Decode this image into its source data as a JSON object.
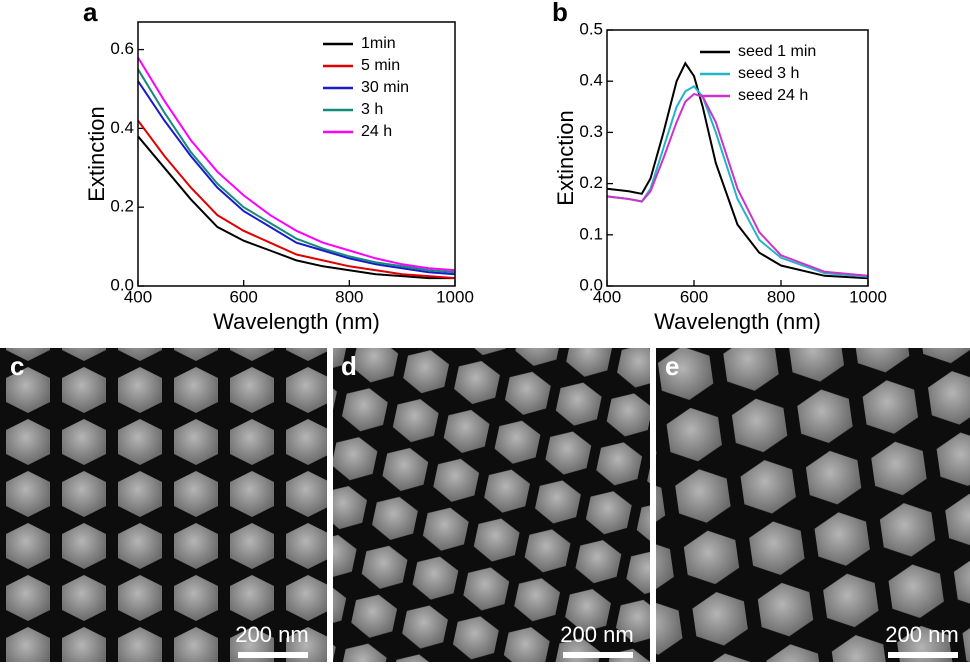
{
  "chart_data": [
    {
      "type": "line",
      "label": "a",
      "xlabel": "Wavelength (nm)",
      "ylabel": "Extinction",
      "x": [
        400,
        450,
        500,
        550,
        600,
        650,
        700,
        750,
        800,
        850,
        900,
        950,
        1000
      ],
      "series": [
        {
          "name": "1min",
          "color": "#000000",
          "values": [
            0.38,
            0.3,
            0.22,
            0.15,
            0.115,
            0.09,
            0.065,
            0.05,
            0.04,
            0.03,
            0.025,
            0.02,
            0.02
          ]
        },
        {
          "name": "5 min",
          "color": "#e00000",
          "values": [
            0.42,
            0.33,
            0.25,
            0.18,
            0.14,
            0.11,
            0.08,
            0.065,
            0.05,
            0.04,
            0.03,
            0.025,
            0.02
          ]
        },
        {
          "name": "30 min",
          "color": "#1a1acc",
          "values": [
            0.52,
            0.42,
            0.33,
            0.25,
            0.19,
            0.15,
            0.11,
            0.09,
            0.07,
            0.055,
            0.045,
            0.035,
            0.03
          ]
        },
        {
          "name": "3 h",
          "color": "#148a7a",
          "values": [
            0.55,
            0.44,
            0.34,
            0.26,
            0.2,
            0.16,
            0.12,
            0.095,
            0.075,
            0.06,
            0.05,
            0.04,
            0.035
          ]
        },
        {
          "name": "24 h",
          "color": "#ff00ff",
          "values": [
            0.58,
            0.47,
            0.37,
            0.29,
            0.23,
            0.18,
            0.14,
            0.11,
            0.09,
            0.07,
            0.055,
            0.045,
            0.04
          ]
        }
      ],
      "xlim": [
        400,
        1000
      ],
      "xticks": [
        400,
        600,
        800,
        1000
      ],
      "ylim": [
        0,
        0.67
      ],
      "yticks": [
        {
          "value": 0,
          "label": "0.0"
        },
        0.2,
        0.4,
        0.6
      ],
      "legend": "upper right"
    },
    {
      "type": "line",
      "label": "b",
      "xlabel": "Wavelength (nm)",
      "ylabel": "Extinction",
      "x": [
        400,
        450,
        480,
        500,
        530,
        560,
        580,
        600,
        620,
        650,
        700,
        750,
        800,
        900,
        1000
      ],
      "series": [
        {
          "name": "seed 1 min",
          "color": "#000000",
          "values": [
            0.19,
            0.185,
            0.18,
            0.21,
            0.3,
            0.4,
            0.435,
            0.41,
            0.35,
            0.24,
            0.12,
            0.065,
            0.04,
            0.02,
            0.015
          ]
        },
        {
          "name": "seed 3 h",
          "color": "#22b5c8",
          "values": [
            0.175,
            0.17,
            0.165,
            0.19,
            0.27,
            0.35,
            0.38,
            0.39,
            0.37,
            0.3,
            0.17,
            0.09,
            0.055,
            0.025,
            0.018
          ]
        },
        {
          "name": "seed 24 h",
          "color": "#cc33cc",
          "values": [
            0.175,
            0.17,
            0.165,
            0.185,
            0.25,
            0.32,
            0.36,
            0.375,
            0.37,
            0.32,
            0.19,
            0.105,
            0.06,
            0.028,
            0.02
          ]
        }
      ],
      "xlim": [
        400,
        1000
      ],
      "xticks": [
        400,
        600,
        800,
        1000
      ],
      "ylim": [
        0,
        0.5
      ],
      "yticks": [
        {
          "value": 0,
          "label": "0.0"
        },
        0.1,
        0.2,
        0.3,
        0.4,
        0.5
      ],
      "legend": "upper right"
    }
  ],
  "panels": [
    {
      "label": "c",
      "scale_bar": "200 nm"
    },
    {
      "label": "d",
      "scale_bar": "200 nm"
    },
    {
      "label": "e",
      "scale_bar": "200 nm"
    }
  ]
}
